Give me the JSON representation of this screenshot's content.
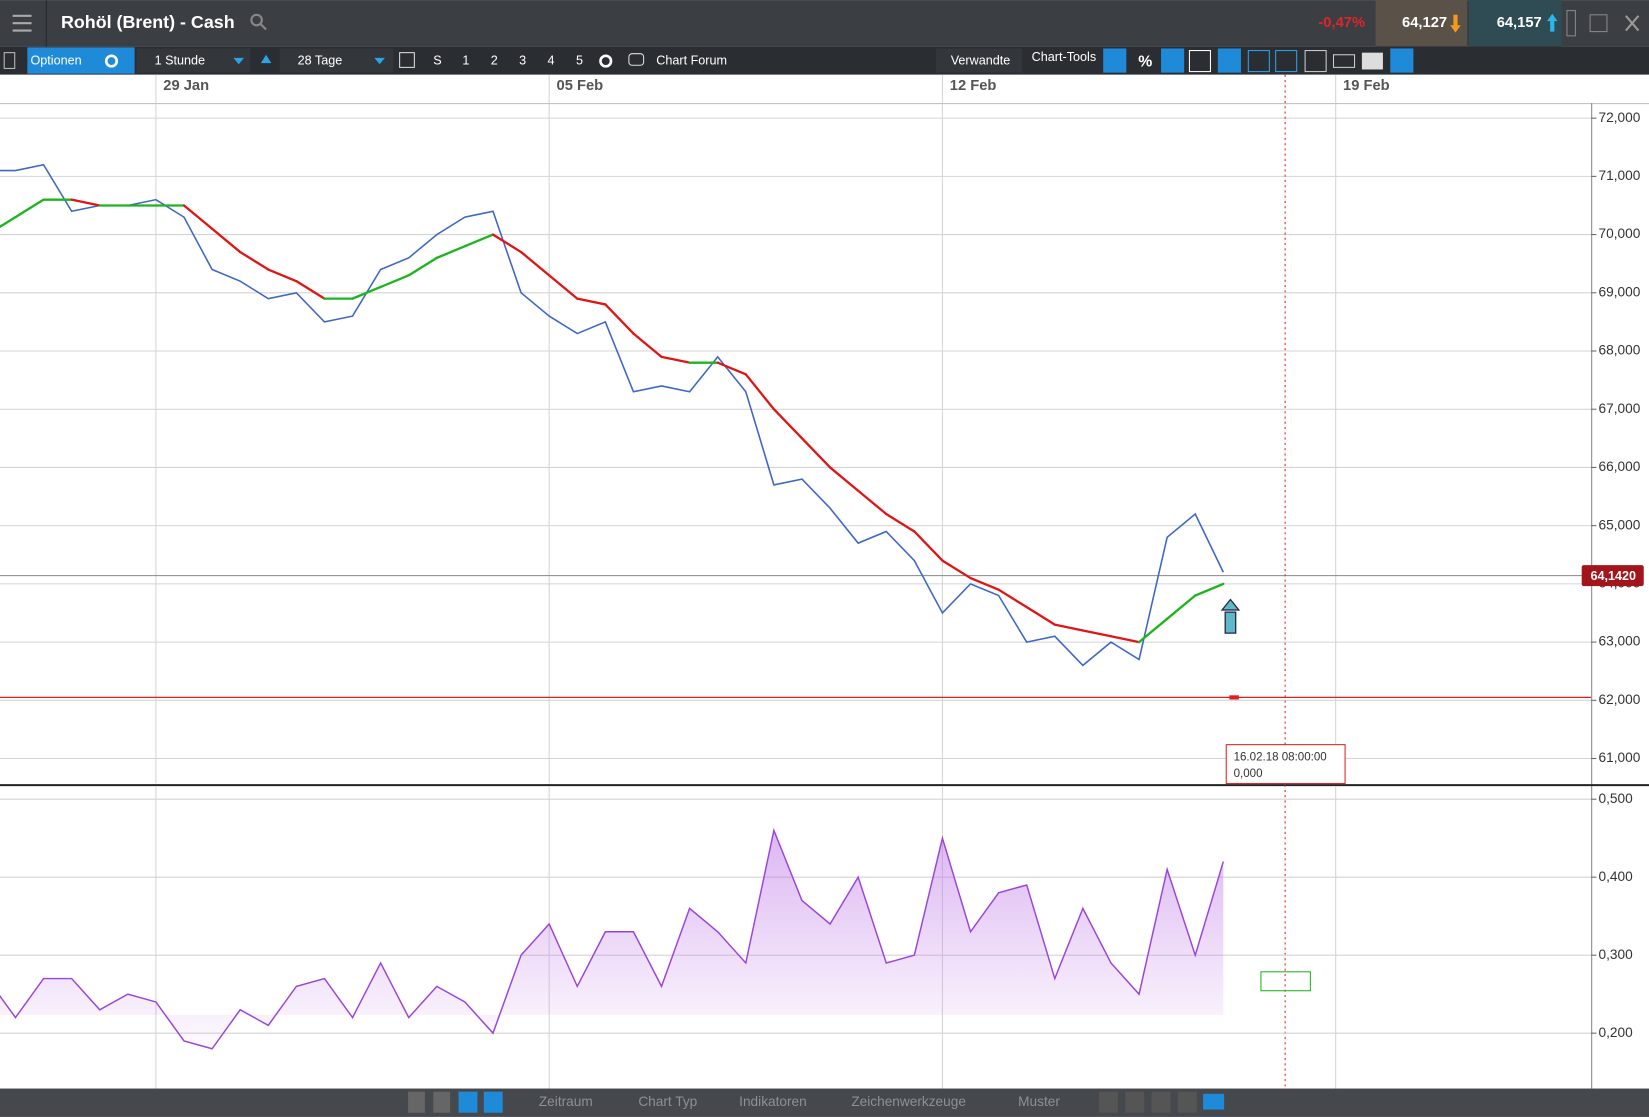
{
  "header": {
    "title": "Rohöl (Brent) - Cash",
    "change": "-0,47%",
    "bid": "64,127",
    "ask": "64,157"
  },
  "toolbar": {
    "options": "Optionen",
    "interval": "1 Stunde",
    "range": "28 Tage",
    "views": [
      "S",
      "1",
      "2",
      "3",
      "4",
      "5"
    ],
    "forum": "Chart Forum",
    "related": "Verwandte",
    "chart_tools": "Chart-Tools",
    "percent": "%"
  },
  "chart_data": [
    {
      "type": "line",
      "categories": [
        null,
        null,
        null,
        null,
        null,
        null,
        "29 Jan",
        null,
        null,
        null,
        null,
        null,
        null,
        null,
        null,
        null,
        null,
        null,
        null,
        null,
        "05 Feb",
        null,
        null,
        null,
        null,
        null,
        null,
        null,
        null,
        null,
        null,
        null,
        null,
        null,
        "12 Feb",
        null,
        null,
        null,
        null,
        null,
        null,
        null,
        null,
        null,
        null,
        null,
        null,
        null,
        "19 Feb"
      ],
      "series": [
        {
          "color": "#3f66c8",
          "values": [
            71.1,
            71.1,
            71.2,
            70.4,
            70.5,
            70.5,
            70.6,
            70.3,
            69.4,
            69.2,
            68.9,
            69.0,
            68.5,
            68.6,
            69.4,
            69.6,
            70.0,
            70.3,
            70.4,
            69.0,
            68.6,
            68.3,
            68.5,
            67.3,
            67.4,
            67.3,
            67.9,
            67.3,
            65.7,
            65.8,
            65.3,
            64.7,
            64.9,
            64.4,
            63.5,
            64.0,
            63.8,
            63.0,
            63.1,
            62.6,
            63.0,
            62.7,
            64.8,
            65.2,
            64.2,
            null,
            null,
            null,
            null
          ]
        },
        {
          "up_color": "#1db41d",
          "down_color": "#e01515",
          "values": [
            70.0,
            70.3,
            70.6,
            70.6,
            70.5,
            70.5,
            70.5,
            70.5,
            70.1,
            69.7,
            69.4,
            69.2,
            68.9,
            68.9,
            69.1,
            69.3,
            69.6,
            69.8,
            70.0,
            69.7,
            69.3,
            68.9,
            68.8,
            68.3,
            67.9,
            67.8,
            67.8,
            67.6,
            67.0,
            66.5,
            66.0,
            65.6,
            65.2,
            64.9,
            64.4,
            64.1,
            63.9,
            63.6,
            63.3,
            63.2,
            63.1,
            63.0,
            63.4,
            63.8,
            64.0,
            null,
            null,
            null,
            null
          ]
        }
      ],
      "ylim": [
        60.57,
        72.24
      ],
      "yticks": [
        {
          "value": 61,
          "label": "61,000"
        },
        {
          "value": 62,
          "label": "62,000"
        },
        {
          "value": 63,
          "label": "63,000"
        },
        {
          "value": 64,
          "label": "64,000"
        },
        {
          "value": 65,
          "label": "65,000"
        },
        {
          "value": 66,
          "label": "66,000"
        },
        {
          "value": 67,
          "label": "67,000"
        },
        {
          "value": 68,
          "label": "68,000"
        },
        {
          "value": 69,
          "label": "69,000"
        },
        {
          "value": 70,
          "label": "70,000"
        },
        {
          "value": 71,
          "label": "71,000"
        },
        {
          "value": 72,
          "label": "72,000"
        }
      ],
      "grid": true,
      "current_price": {
        "value": 64.142,
        "label": "64,1420"
      },
      "support_line": 62.05,
      "crosshair": {
        "time": "16.02.18 08:00:00",
        "value": "0,000"
      }
    },
    {
      "type": "area",
      "series": [
        {
          "color": "#9a45d8",
          "values": [
            0.27,
            0.22,
            0.27,
            0.27,
            0.23,
            0.25,
            0.24,
            0.19,
            0.18,
            0.23,
            0.21,
            0.26,
            0.27,
            0.22,
            0.29,
            0.22,
            0.26,
            0.24,
            0.2,
            0.3,
            0.34,
            0.26,
            0.33,
            0.33,
            0.26,
            0.36,
            0.33,
            0.29,
            0.46,
            0.37,
            0.34,
            0.4,
            0.29,
            0.3,
            0.45,
            0.33,
            0.38,
            0.39,
            0.27,
            0.36,
            0.29,
            0.25,
            0.41,
            0.3,
            0.42,
            null,
            null,
            null,
            null
          ]
        }
      ],
      "ylim": [
        0.129,
        0.516
      ],
      "yticks": [
        {
          "value": 0.2,
          "label": "0,200"
        },
        {
          "value": 0.3,
          "label": "0,300"
        },
        {
          "value": 0.4,
          "label": "0,400"
        },
        {
          "value": 0.5,
          "label": "0,500"
        }
      ],
      "grid": true
    }
  ],
  "footer": {
    "tabs": [
      "Zeitraum",
      "Chart Typ",
      "Indikatoren",
      "Zeichenwerkzeuge",
      "Muster"
    ]
  }
}
